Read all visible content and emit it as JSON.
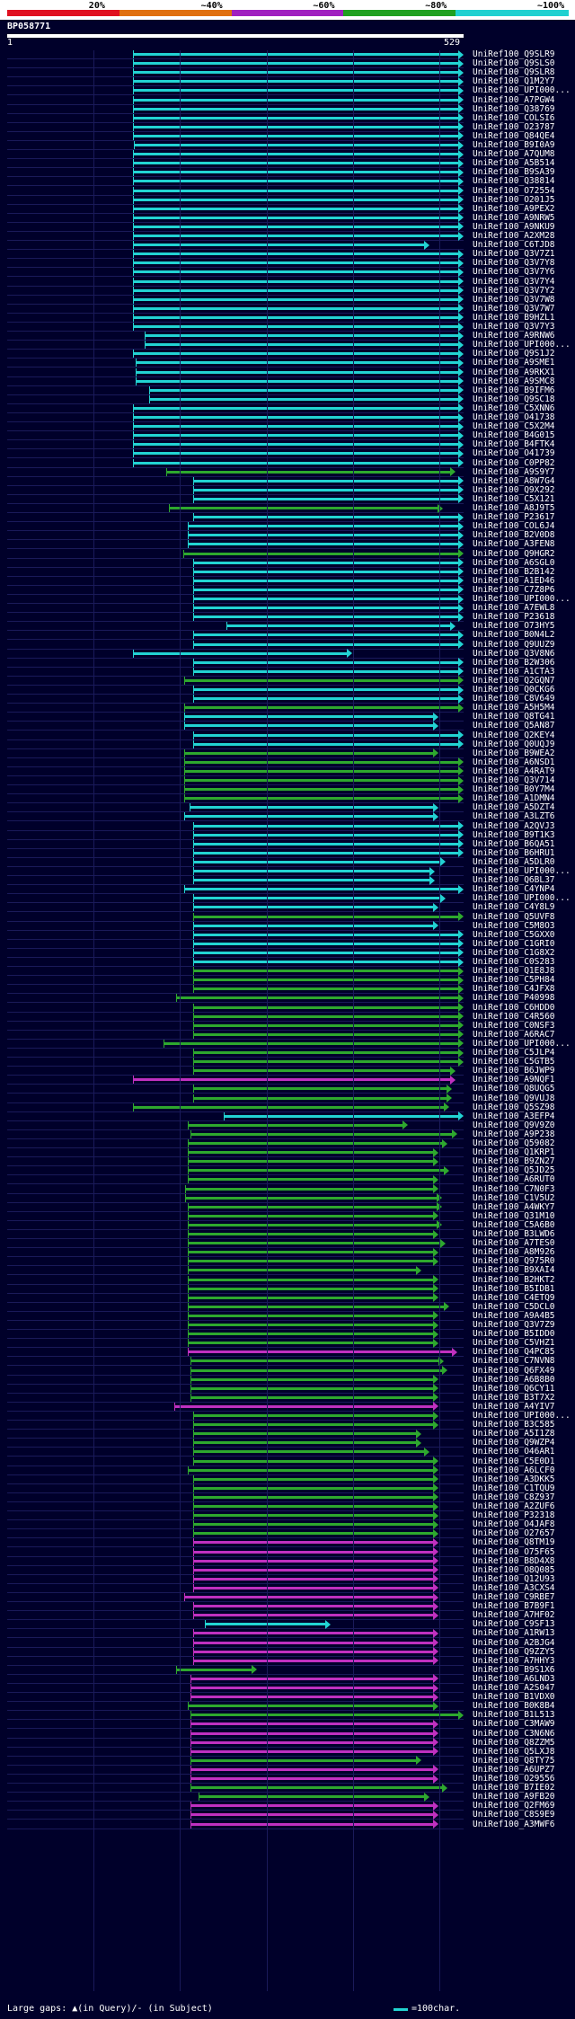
{
  "legend": {
    "labels": [
      "20%",
      "~40%",
      "~60%",
      "~80%",
      "~100%"
    ],
    "colors": [
      "#e01020",
      "#e07010",
      "#a020c0",
      "#20a020",
      "#20d0d0"
    ]
  },
  "query": {
    "id": "BP058771",
    "start": "1",
    "end": "529"
  },
  "colors": {
    "cyan": "#22d3d3",
    "green": "#2ea82e",
    "magenta": "#c030c0",
    "bg": "#00002a"
  },
  "hits": [
    {
      "label": "UniRef100_Q9SLR9",
      "c": "cyan",
      "s": 146,
      "e": 529
    },
    {
      "label": "UniRef100_Q9SLS0",
      "c": "cyan",
      "s": 146,
      "e": 529
    },
    {
      "label": "UniRef100_Q9SLR8",
      "c": "cyan",
      "s": 146,
      "e": 529
    },
    {
      "label": "UniRef100_Q1M2Y7",
      "c": "cyan",
      "s": 146,
      "e": 529
    },
    {
      "label": "UniRef100_UPI000...",
      "c": "cyan",
      "s": 146,
      "e": 529
    },
    {
      "label": "UniRef100_A7PGW4",
      "c": "cyan",
      "s": 146,
      "e": 529
    },
    {
      "label": "UniRef100_Q38769",
      "c": "cyan",
      "s": 146,
      "e": 529
    },
    {
      "label": "UniRef100_COLSI6",
      "c": "cyan",
      "s": 146,
      "e": 529
    },
    {
      "label": "UniRef100_O23787",
      "c": "cyan",
      "s": 146,
      "e": 529
    },
    {
      "label": "UniRef100_Q84QE4",
      "c": "cyan",
      "s": 146,
      "e": 529
    },
    {
      "label": "UniRef100_B9I0A9",
      "c": "cyan",
      "s": 148,
      "e": 529
    },
    {
      "label": "UniRef100_A7QUM8",
      "c": "cyan",
      "s": 146,
      "e": 529
    },
    {
      "label": "UniRef100_A5B514",
      "c": "cyan",
      "s": 146,
      "e": 529
    },
    {
      "label": "UniRef100_B9SA39",
      "c": "cyan",
      "s": 146,
      "e": 529
    },
    {
      "label": "UniRef100_Q38814",
      "c": "cyan",
      "s": 146,
      "e": 529
    },
    {
      "label": "UniRef100_O72554",
      "c": "cyan",
      "s": 146,
      "e": 529
    },
    {
      "label": "UniRef100_O201J5",
      "c": "cyan",
      "s": 146,
      "e": 529
    },
    {
      "label": "UniRef100_A9PEX2",
      "c": "cyan",
      "s": 146,
      "e": 529
    },
    {
      "label": "UniRef100_A9NRW5",
      "c": "cyan",
      "s": 146,
      "e": 529
    },
    {
      "label": "UniRef100_A9NKU9",
      "c": "cyan",
      "s": 146,
      "e": 529
    },
    {
      "label": "UniRef100_A2XM28",
      "c": "cyan",
      "s": 146,
      "e": 529
    },
    {
      "label": "UniRef100_C6TJD8",
      "c": "cyan",
      "s": 146,
      "e": 490
    },
    {
      "label": "UniRef100_Q3V7Z1",
      "c": "cyan",
      "s": 146,
      "e": 529
    },
    {
      "label": "UniRef100_Q3V7Y8",
      "c": "cyan",
      "s": 146,
      "e": 529
    },
    {
      "label": "UniRef100_Q3V7Y6",
      "c": "cyan",
      "s": 146,
      "e": 529
    },
    {
      "label": "UniRef100_Q3V7Y4",
      "c": "cyan",
      "s": 146,
      "e": 529
    },
    {
      "label": "UniRef100_Q3V7Y2",
      "c": "cyan",
      "s": 146,
      "e": 529
    },
    {
      "label": "UniRef100_Q3V7W8",
      "c": "cyan",
      "s": 146,
      "e": 529
    },
    {
      "label": "UniRef100_Q3V7W7",
      "c": "cyan",
      "s": 146,
      "e": 529
    },
    {
      "label": "UniRef100_B9HZL1",
      "c": "cyan",
      "s": 146,
      "e": 529
    },
    {
      "label": "UniRef100_Q3V7Y3",
      "c": "cyan",
      "s": 146,
      "e": 529
    },
    {
      "label": "UniRef100_A9RNW6",
      "c": "cyan",
      "s": 160,
      "e": 529
    },
    {
      "label": "UniRef100_UPI000...",
      "c": "cyan",
      "s": 160,
      "e": 529
    },
    {
      "label": "UniRef100_Q9S1J2",
      "c": "cyan",
      "s": 146,
      "e": 529
    },
    {
      "label": "UniRef100_A9SME1",
      "c": "cyan",
      "s": 150,
      "e": 529
    },
    {
      "label": "UniRef100_A9RKX1",
      "c": "cyan",
      "s": 150,
      "e": 529
    },
    {
      "label": "UniRef100_A9SMC8",
      "c": "cyan",
      "s": 150,
      "e": 529
    },
    {
      "label": "UniRef100_B9IFM6",
      "c": "cyan",
      "s": 165,
      "e": 529
    },
    {
      "label": "UniRef100_Q9SC18",
      "c": "cyan",
      "s": 165,
      "e": 529
    },
    {
      "label": "UniRef100_C5XNN6",
      "c": "cyan",
      "s": 146,
      "e": 529
    },
    {
      "label": "UniRef100_O41738",
      "c": "cyan",
      "s": 146,
      "e": 529
    },
    {
      "label": "UniRef100_C5X2M4",
      "c": "cyan",
      "s": 146,
      "e": 529
    },
    {
      "label": "UniRef100_B4G015",
      "c": "cyan",
      "s": 146,
      "e": 529
    },
    {
      "label": "UniRef100_B4FTK4",
      "c": "cyan",
      "s": 146,
      "e": 529
    },
    {
      "label": "UniRef100_O41739",
      "c": "cyan",
      "s": 146,
      "e": 529
    },
    {
      "label": "UniRef100_C0PP82",
      "c": "cyan",
      "s": 146,
      "e": 529
    },
    {
      "label": "UniRef100_A9S9Y7",
      "c": "green",
      "s": 185,
      "e": 520
    },
    {
      "label": "UniRef100_A8W7G4",
      "c": "cyan",
      "s": 216,
      "e": 529
    },
    {
      "label": "UniRef100_Q9X292",
      "c": "cyan",
      "s": 216,
      "e": 529
    },
    {
      "label": "UniRef100_C5X121",
      "c": "cyan",
      "s": 216,
      "e": 529
    },
    {
      "label": "UniRef100_A8J9T5",
      "c": "green",
      "s": 188,
      "e": 505
    },
    {
      "label": "UniRef100_P23617",
      "c": "cyan",
      "s": 216,
      "e": 529
    },
    {
      "label": "UniRef100_COL6J4",
      "c": "cyan",
      "s": 210,
      "e": 529
    },
    {
      "label": "UniRef100_B2V0D8",
      "c": "cyan",
      "s": 210,
      "e": 529
    },
    {
      "label": "UniRef100_A3FEN8",
      "c": "cyan",
      "s": 210,
      "e": 529
    },
    {
      "label": "UniRef100_Q9HGR2",
      "c": "green",
      "s": 205,
      "e": 529
    },
    {
      "label": "UniRef100_A6SGL0",
      "c": "cyan",
      "s": 216,
      "e": 529
    },
    {
      "label": "UniRef100_B2B142",
      "c": "cyan",
      "s": 216,
      "e": 529
    },
    {
      "label": "UniRef100_A1ED46",
      "c": "cyan",
      "s": 216,
      "e": 529
    },
    {
      "label": "UniRef100_C7Z8P6",
      "c": "cyan",
      "s": 216,
      "e": 529
    },
    {
      "label": "UniRef100_UPI000...",
      "c": "cyan",
      "s": 216,
      "e": 529
    },
    {
      "label": "UniRef100_A7EWL8",
      "c": "cyan",
      "s": 216,
      "e": 529
    },
    {
      "label": "UniRef100_P23618",
      "c": "cyan",
      "s": 216,
      "e": 529
    },
    {
      "label": "UniRef100_O73HY5",
      "c": "cyan",
      "s": 255,
      "e": 520
    },
    {
      "label": "UniRef100_B0N4L2",
      "c": "cyan",
      "s": 216,
      "e": 529
    },
    {
      "label": "UniRef100_Q9UUZ9",
      "c": "cyan",
      "s": 216,
      "e": 529
    },
    {
      "label": "UniRef100_Q3V8N6",
      "c": "cyan",
      "s": 146,
      "e": 400
    },
    {
      "label": "UniRef100_B2W306",
      "c": "cyan",
      "s": 216,
      "e": 529
    },
    {
      "label": "UniRef100_A1CTA3",
      "c": "cyan",
      "s": 216,
      "e": 529
    },
    {
      "label": "UniRef100_Q2GQN7",
      "c": "green",
      "s": 206,
      "e": 529
    },
    {
      "label": "UniRef100_Q0CKG6",
      "c": "cyan",
      "s": 216,
      "e": 529
    },
    {
      "label": "UniRef100_C8V649",
      "c": "cyan",
      "s": 216,
      "e": 529
    },
    {
      "label": "UniRef100_A5H5M4",
      "c": "green",
      "s": 206,
      "e": 529
    },
    {
      "label": "UniRef100_Q8TG41",
      "c": "cyan",
      "s": 206,
      "e": 500
    },
    {
      "label": "UniRef100_Q5AN87",
      "c": "cyan",
      "s": 206,
      "e": 500
    },
    {
      "label": "UniRef100_Q2KEY4",
      "c": "cyan",
      "s": 216,
      "e": 529
    },
    {
      "label": "UniRef100_Q0UQJ9",
      "c": "cyan",
      "s": 216,
      "e": 529
    },
    {
      "label": "UniRef100_B9WEA2",
      "c": "green",
      "s": 206,
      "e": 500
    },
    {
      "label": "UniRef100_A6NSD1",
      "c": "green",
      "s": 206,
      "e": 529
    },
    {
      "label": "UniRef100_A4RAT9",
      "c": "green",
      "s": 206,
      "e": 529
    },
    {
      "label": "UniRef100_Q3V714",
      "c": "green",
      "s": 206,
      "e": 529
    },
    {
      "label": "UniRef100_B0Y7M4",
      "c": "green",
      "s": 206,
      "e": 529
    },
    {
      "label": "UniRef100_A1DMN4",
      "c": "green",
      "s": 206,
      "e": 529
    },
    {
      "label": "UniRef100_A5DZT4",
      "c": "cyan",
      "s": 212,
      "e": 500
    },
    {
      "label": "UniRef100_A3LZT6",
      "c": "cyan",
      "s": 206,
      "e": 500
    },
    {
      "label": "UniRef100_A2QVJ3",
      "c": "cyan",
      "s": 216,
      "e": 529
    },
    {
      "label": "UniRef100_B9T1K3",
      "c": "cyan",
      "s": 216,
      "e": 529
    },
    {
      "label": "UniRef100_B6QA51",
      "c": "cyan",
      "s": 216,
      "e": 529
    },
    {
      "label": "UniRef100_B6HRU1",
      "c": "cyan",
      "s": 216,
      "e": 529
    },
    {
      "label": "UniRef100_A5DLR0",
      "c": "cyan",
      "s": 216,
      "e": 508
    },
    {
      "label": "UniRef100_UPI000...",
      "c": "cyan",
      "s": 216,
      "e": 496
    },
    {
      "label": "UniRef100_Q6BL37",
      "c": "cyan",
      "s": 216,
      "e": 496
    },
    {
      "label": "UniRef100_C4YNP4",
      "c": "cyan",
      "s": 206,
      "e": 529
    },
    {
      "label": "UniRef100_UPI000...",
      "c": "cyan",
      "s": 216,
      "e": 508
    },
    {
      "label": "UniRef100_C4Y8L9",
      "c": "cyan",
      "s": 216,
      "e": 500
    },
    {
      "label": "UniRef100_Q5UVF8",
      "c": "green",
      "s": 216,
      "e": 529
    },
    {
      "label": "UniRef100_C5M8O3",
      "c": "cyan",
      "s": 216,
      "e": 500
    },
    {
      "label": "UniRef100_C5GXX0",
      "c": "cyan",
      "s": 216,
      "e": 529
    },
    {
      "label": "UniRef100_C1GRI0",
      "c": "cyan",
      "s": 216,
      "e": 529
    },
    {
      "label": "UniRef100_C1G8X2",
      "c": "cyan",
      "s": 216,
      "e": 529
    },
    {
      "label": "UniRef100_C0S283",
      "c": "cyan",
      "s": 216,
      "e": 529
    },
    {
      "label": "UniRef100_Q1E8J8",
      "c": "green",
      "s": 216,
      "e": 529
    },
    {
      "label": "UniRef100_C5PH84",
      "c": "green",
      "s": 216,
      "e": 529
    },
    {
      "label": "UniRef100_C4JFX8",
      "c": "green",
      "s": 216,
      "e": 529
    },
    {
      "label": "UniRef100_P40998",
      "c": "green",
      "s": 196,
      "e": 529
    },
    {
      "label": "UniRef100_C6HDD0",
      "c": "green",
      "s": 216,
      "e": 529
    },
    {
      "label": "UniRef100_C4R560",
      "c": "green",
      "s": 216,
      "e": 529
    },
    {
      "label": "UniRef100_C0NSF3",
      "c": "green",
      "s": 216,
      "e": 529
    },
    {
      "label": "UniRef100_A6RAC7",
      "c": "green",
      "s": 216,
      "e": 529
    },
    {
      "label": "UniRef100_UPI000...",
      "c": "green",
      "s": 182,
      "e": 529
    },
    {
      "label": "UniRef100_C5JLP4",
      "c": "green",
      "s": 216,
      "e": 529
    },
    {
      "label": "UniRef100_C5GTB5",
      "c": "green",
      "s": 216,
      "e": 529
    },
    {
      "label": "UniRef100_B6JWP9",
      "c": "green",
      "s": 216,
      "e": 520
    },
    {
      "label": "UniRef100_A9NQF1",
      "c": "magenta",
      "s": 146,
      "e": 520
    },
    {
      "label": "UniRef100_Q8UQG5",
      "c": "green",
      "s": 216,
      "e": 516
    },
    {
      "label": "UniRef100_Q9VUJ8",
      "c": "green",
      "s": 216,
      "e": 516
    },
    {
      "label": "UniRef100_Q5SZ98",
      "c": "green",
      "s": 146,
      "e": 512
    },
    {
      "label": "UniRef100_A3EFP4",
      "c": "cyan",
      "s": 252,
      "e": 529
    },
    {
      "label": "UniRef100_Q9V9Z0",
      "c": "green",
      "s": 210,
      "e": 465
    },
    {
      "label": "UniRef100_A9P238",
      "c": "green",
      "s": 213,
      "e": 522
    },
    {
      "label": "UniRef100_Q59082",
      "c": "green",
      "s": 210,
      "e": 510
    },
    {
      "label": "UniRef100_Q1KRP1",
      "c": "green",
      "s": 210,
      "e": 500
    },
    {
      "label": "UniRef100_B9ZN27",
      "c": "green",
      "s": 210,
      "e": 500
    },
    {
      "label": "UniRef100_Q5JD25",
      "c": "green",
      "s": 210,
      "e": 512
    },
    {
      "label": "UniRef100_A6RUT0",
      "c": "green",
      "s": 210,
      "e": 500
    },
    {
      "label": "UniRef100_C7N0F3",
      "c": "green",
      "s": 207,
      "e": 500
    },
    {
      "label": "UniRef100_C1V5U2",
      "c": "green",
      "s": 207,
      "e": 504
    },
    {
      "label": "UniRef100_A4WKY7",
      "c": "green",
      "s": 210,
      "e": 504
    },
    {
      "label": "UniRef100_Q31M10",
      "c": "green",
      "s": 210,
      "e": 500
    },
    {
      "label": "UniRef100_C5A6B0",
      "c": "green",
      "s": 210,
      "e": 504
    },
    {
      "label": "UniRef100_B3LWD6",
      "c": "green",
      "s": 210,
      "e": 500
    },
    {
      "label": "UniRef100_A7TES0",
      "c": "green",
      "s": 210,
      "e": 508
    },
    {
      "label": "UniRef100_A8M926",
      "c": "green",
      "s": 210,
      "e": 500
    },
    {
      "label": "UniRef100_Q975R0",
      "c": "green",
      "s": 210,
      "e": 500
    },
    {
      "label": "UniRef100_B9XAI4",
      "c": "green",
      "s": 210,
      "e": 480
    },
    {
      "label": "UniRef100_B2HKT2",
      "c": "green",
      "s": 210,
      "e": 500
    },
    {
      "label": "UniRef100_B5IDB1",
      "c": "green",
      "s": 210,
      "e": 500
    },
    {
      "label": "UniRef100_C4ETQ9",
      "c": "green",
      "s": 210,
      "e": 500
    },
    {
      "label": "UniRef100_C5DCL0",
      "c": "green",
      "s": 210,
      "e": 512
    },
    {
      "label": "UniRef100_A9A4B5",
      "c": "green",
      "s": 210,
      "e": 500
    },
    {
      "label": "UniRef100_Q3V7Z9",
      "c": "green",
      "s": 210,
      "e": 500
    },
    {
      "label": "UniRef100_B5IDD0",
      "c": "green",
      "s": 210,
      "e": 500
    },
    {
      "label": "UniRef100_C5VHZ1",
      "c": "green",
      "s": 210,
      "e": 500
    },
    {
      "label": "UniRef100_Q4PC85",
      "c": "magenta",
      "s": 210,
      "e": 522
    },
    {
      "label": "UniRef100_C7NVN8",
      "c": "green",
      "s": 213,
      "e": 506
    },
    {
      "label": "UniRef100_Q6FX49",
      "c": "green",
      "s": 213,
      "e": 510
    },
    {
      "label": "UniRef100_A6B8B0",
      "c": "green",
      "s": 213,
      "e": 500
    },
    {
      "label": "UniRef100_Q6CY11",
      "c": "green",
      "s": 213,
      "e": 500
    },
    {
      "label": "UniRef100_B3T7X2",
      "c": "green",
      "s": 213,
      "e": 500
    },
    {
      "label": "UniRef100_A4YIV7",
      "c": "magenta",
      "s": 194,
      "e": 500
    },
    {
      "label": "UniRef100_UPI000...",
      "c": "green",
      "s": 216,
      "e": 500
    },
    {
      "label": "UniRef100_B3C585",
      "c": "green",
      "s": 216,
      "e": 500
    },
    {
      "label": "UniRef100_A5I1Z8",
      "c": "green",
      "s": 216,
      "e": 480
    },
    {
      "label": "UniRef100_Q9WZP4",
      "c": "green",
      "s": 216,
      "e": 480
    },
    {
      "label": "UniRef100_O46AR1",
      "c": "green",
      "s": 216,
      "e": 490
    },
    {
      "label": "UniRef100_C5E0D1",
      "c": "green",
      "s": 216,
      "e": 500
    },
    {
      "label": "UniRef100_A6LCF0",
      "c": "green",
      "s": 210,
      "e": 500
    },
    {
      "label": "UniRef100_A3DKK5",
      "c": "green",
      "s": 216,
      "e": 500
    },
    {
      "label": "UniRef100_C1TQU9",
      "c": "green",
      "s": 216,
      "e": 500
    },
    {
      "label": "UniRef100_C8Z937",
      "c": "green",
      "s": 216,
      "e": 500
    },
    {
      "label": "UniRef100_A2ZUF6",
      "c": "green",
      "s": 216,
      "e": 500
    },
    {
      "label": "UniRef100_P32318",
      "c": "green",
      "s": 216,
      "e": 500
    },
    {
      "label": "UniRef100_O4JAF8",
      "c": "green",
      "s": 216,
      "e": 500
    },
    {
      "label": "UniRef100_O27657",
      "c": "green",
      "s": 216,
      "e": 500
    },
    {
      "label": "UniRef100_Q8TM19",
      "c": "magenta",
      "s": 216,
      "e": 500
    },
    {
      "label": "UniRef100_O75F65",
      "c": "magenta",
      "s": 216,
      "e": 500
    },
    {
      "label": "UniRef100_B8D4X8",
      "c": "magenta",
      "s": 216,
      "e": 500
    },
    {
      "label": "UniRef100_O8Q085",
      "c": "magenta",
      "s": 216,
      "e": 500
    },
    {
      "label": "UniRef100_Q12U93",
      "c": "magenta",
      "s": 216,
      "e": 500
    },
    {
      "label": "UniRef100_A3CXS4",
      "c": "magenta",
      "s": 216,
      "e": 500
    },
    {
      "label": "UniRef100_C9RBE7",
      "c": "magenta",
      "s": 206,
      "e": 500
    },
    {
      "label": "UniRef100_B7B9F1",
      "c": "magenta",
      "s": 216,
      "e": 500
    },
    {
      "label": "UniRef100_A7HF02",
      "c": "magenta",
      "s": 216,
      "e": 500
    },
    {
      "label": "UniRef100_C9SF13",
      "c": "cyan",
      "s": 230,
      "e": 375
    },
    {
      "label": "UniRef100_A1RW13",
      "c": "magenta",
      "s": 216,
      "e": 500
    },
    {
      "label": "UniRef100_A2BJG4",
      "c": "magenta",
      "s": 216,
      "e": 500
    },
    {
      "label": "UniRef100_Q9ZZY5",
      "c": "magenta",
      "s": 216,
      "e": 500
    },
    {
      "label": "UniRef100_A7HHY3",
      "c": "magenta",
      "s": 216,
      "e": 500
    },
    {
      "label": "UniRef100_B9S1X6",
      "c": "green",
      "s": 196,
      "e": 290
    },
    {
      "label": "UniRef100_A6LND3",
      "c": "magenta",
      "s": 213,
      "e": 500
    },
    {
      "label": "UniRef100_A2S047",
      "c": "magenta",
      "s": 213,
      "e": 500
    },
    {
      "label": "UniRef100_B1VDX0",
      "c": "magenta",
      "s": 213,
      "e": 500
    },
    {
      "label": "UniRef100_B0K8B4",
      "c": "green",
      "s": 210,
      "e": 500
    },
    {
      "label": "UniRef100_B1L513",
      "c": "green",
      "s": 213,
      "e": 529
    },
    {
      "label": "UniRef100_C3MAW9",
      "c": "magenta",
      "s": 213,
      "e": 500
    },
    {
      "label": "UniRef100_C3N6N6",
      "c": "magenta",
      "s": 213,
      "e": 500
    },
    {
      "label": "UniRef100_Q8ZZM5",
      "c": "magenta",
      "s": 213,
      "e": 500
    },
    {
      "label": "UniRef100_Q5LXJ8",
      "c": "magenta",
      "s": 213,
      "e": 500
    },
    {
      "label": "UniRef100_Q8TY75",
      "c": "green",
      "s": 213,
      "e": 480
    },
    {
      "label": "UniRef100_A6UPZ7",
      "c": "magenta",
      "s": 213,
      "e": 500
    },
    {
      "label": "UniRef100_O29556",
      "c": "magenta",
      "s": 213,
      "e": 500
    },
    {
      "label": "UniRef100_B7IE02",
      "c": "green",
      "s": 213,
      "e": 510
    },
    {
      "label": "UniRef100_A9FB20",
      "c": "green",
      "s": 222,
      "e": 490
    },
    {
      "label": "UniRef100_Q2FM69",
      "c": "magenta",
      "s": 213,
      "e": 500
    },
    {
      "label": "UniRef100_C8S9E9",
      "c": "magenta",
      "s": 213,
      "e": 500
    },
    {
      "label": "UniRef100_A3MWF6",
      "c": "magenta",
      "s": 213,
      "e": 500
    }
  ],
  "footer": {
    "gaps_text": "Large gaps: ▲(in Query)/- (in Subject)",
    "scale_text": "=100char."
  }
}
